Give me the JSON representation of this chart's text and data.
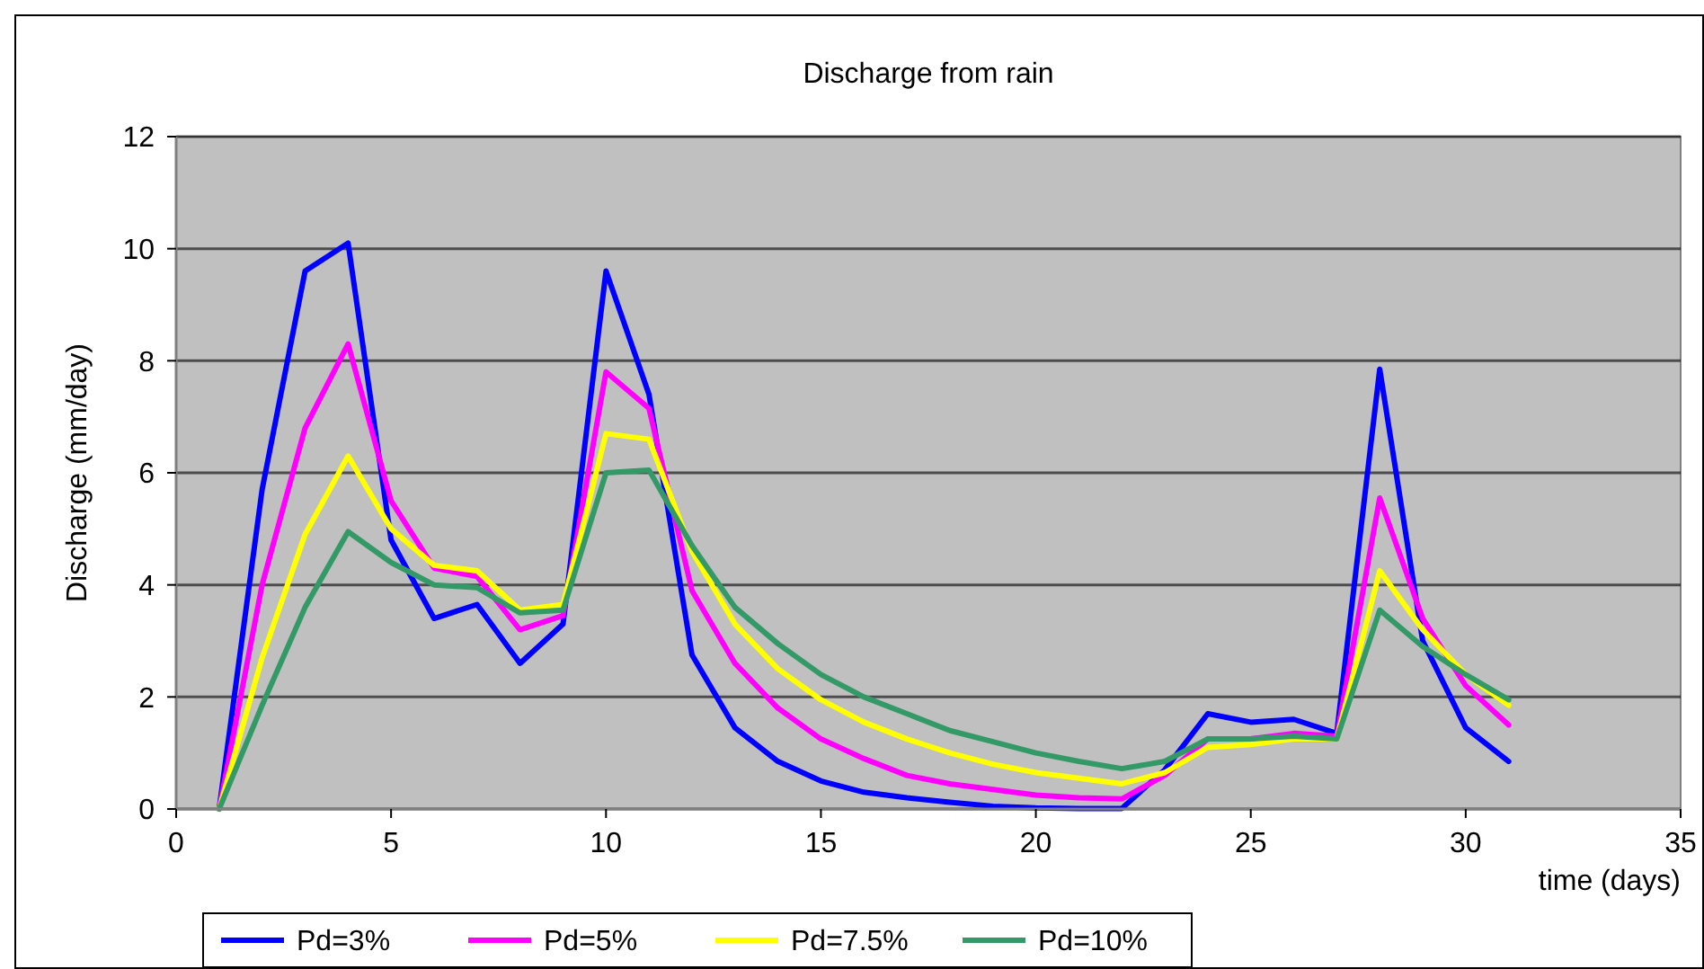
{
  "chart_data": {
    "type": "line",
    "title": "Discharge from rain",
    "xlabel": "time (days)",
    "ylabel": "Discharge (mm/day)",
    "x": [
      1,
      2,
      3,
      4,
      5,
      6,
      7,
      8,
      9,
      10,
      11,
      12,
      13,
      14,
      15,
      16,
      17,
      18,
      19,
      20,
      21,
      22,
      23,
      24,
      25,
      26,
      27,
      28,
      29,
      30,
      31
    ],
    "series": [
      {
        "name": "Pd=3%",
        "color": "#0000ff",
        "values": [
          0,
          5.7,
          9.6,
          10.1,
          4.8,
          3.4,
          3.65,
          2.6,
          3.3,
          9.6,
          7.4,
          2.75,
          1.45,
          0.85,
          0.5,
          0.3,
          0.2,
          0.12,
          0.05,
          0.02,
          0.01,
          0.01,
          0.7,
          1.7,
          1.55,
          1.6,
          1.35,
          7.85,
          3.0,
          1.45,
          0.85
        ]
      },
      {
        "name": "Pd=5%",
        "color": "#ff00ff",
        "values": [
          0,
          4.0,
          6.8,
          8.3,
          5.5,
          4.3,
          4.15,
          3.2,
          3.45,
          7.8,
          7.15,
          3.9,
          2.6,
          1.8,
          1.25,
          0.9,
          0.6,
          0.45,
          0.35,
          0.25,
          0.2,
          0.18,
          0.6,
          1.25,
          1.25,
          1.35,
          1.3,
          5.55,
          3.4,
          2.2,
          1.5
        ]
      },
      {
        "name": "Pd=7.5%",
        "color": "#ffff00",
        "values": [
          0,
          2.7,
          4.9,
          6.3,
          5.0,
          4.35,
          4.25,
          3.55,
          3.65,
          6.7,
          6.6,
          4.6,
          3.3,
          2.5,
          1.95,
          1.55,
          1.25,
          1.0,
          0.8,
          0.65,
          0.55,
          0.45,
          0.65,
          1.1,
          1.15,
          1.25,
          1.25,
          4.25,
          3.2,
          2.4,
          1.85
        ]
      },
      {
        "name": "Pd=10%",
        "color": "#339966",
        "values": [
          0,
          1.85,
          3.6,
          4.95,
          4.4,
          4.0,
          3.95,
          3.5,
          3.55,
          6.0,
          6.05,
          4.7,
          3.6,
          2.95,
          2.4,
          2.0,
          1.7,
          1.4,
          1.2,
          1.0,
          0.85,
          0.72,
          0.85,
          1.25,
          1.25,
          1.3,
          1.25,
          3.55,
          2.9,
          2.4,
          1.95
        ]
      }
    ],
    "xlim": [
      0,
      35
    ],
    "xticks": [
      0,
      5,
      10,
      15,
      20,
      25,
      30,
      35
    ],
    "ylim": [
      0,
      12
    ],
    "yticks": [
      0,
      2,
      4,
      6,
      8,
      10,
      12
    ],
    "grid": "y",
    "legend": "bottom",
    "marker": "none",
    "line_style": "solid"
  }
}
